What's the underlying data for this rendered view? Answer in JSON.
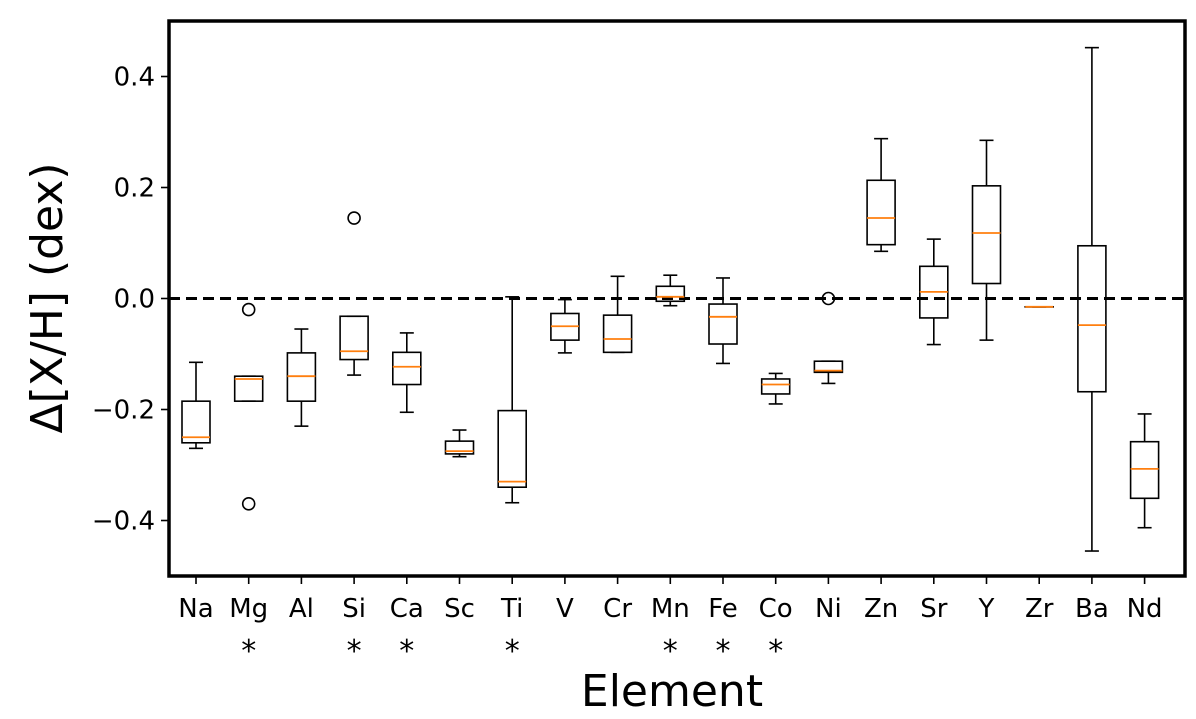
{
  "chart_data": {
    "type": "box",
    "xlabel": "Element",
    "ylabel": "Δ[X/H] (dex)",
    "ylim": [
      -0.5,
      0.5
    ],
    "yticks": [
      -0.4,
      -0.2,
      0.0,
      0.2,
      0.4
    ],
    "ytick_labels": [
      "−0.4",
      "−0.2",
      "0.0",
      "0.2",
      "0.4"
    ],
    "reference_line": {
      "y": 0.0,
      "style": "dashed"
    },
    "marker_symbol": "*",
    "colors": {
      "box": "#000000",
      "median": "#ff7f0e",
      "outlier": "#000000",
      "refline": "#000000"
    },
    "boxes": [
      {
        "label": "Na",
        "whislo": -0.27,
        "q1": -0.26,
        "med": -0.25,
        "q3": -0.185,
        "whishi": -0.115,
        "fliers": [],
        "starred": false
      },
      {
        "label": "Mg",
        "whislo": -0.185,
        "q1": -0.185,
        "med": -0.145,
        "q3": -0.14,
        "whishi": -0.14,
        "fliers": [
          -0.02,
          -0.37
        ],
        "starred": true
      },
      {
        "label": "Al",
        "whislo": -0.23,
        "q1": -0.185,
        "med": -0.14,
        "q3": -0.098,
        "whishi": -0.055,
        "fliers": [],
        "starred": false
      },
      {
        "label": "Si",
        "whislo": -0.138,
        "q1": -0.11,
        "med": -0.095,
        "q3": -0.032,
        "whishi": -0.032,
        "fliers": [
          0.145
        ],
        "starred": true
      },
      {
        "label": "Ca",
        "whislo": -0.205,
        "q1": -0.155,
        "med": -0.123,
        "q3": -0.097,
        "whishi": -0.062,
        "fliers": [],
        "starred": true
      },
      {
        "label": "Sc",
        "whislo": -0.285,
        "q1": -0.28,
        "med": -0.275,
        "q3": -0.257,
        "whishi": -0.237,
        "fliers": [],
        "starred": false
      },
      {
        "label": "Ti",
        "whislo": -0.368,
        "q1": -0.34,
        "med": -0.33,
        "q3": -0.202,
        "whishi": 0.003,
        "fliers": [],
        "starred": true
      },
      {
        "label": "V",
        "whislo": -0.098,
        "q1": -0.075,
        "med": -0.05,
        "q3": -0.027,
        "whishi": -0.002,
        "fliers": [],
        "starred": false
      },
      {
        "label": "Cr",
        "whislo": -0.097,
        "q1": -0.097,
        "med": -0.073,
        "q3": -0.03,
        "whishi": 0.04,
        "fliers": [],
        "starred": false
      },
      {
        "label": "Mn",
        "whislo": -0.013,
        "q1": -0.005,
        "med": 0.003,
        "q3": 0.022,
        "whishi": 0.042,
        "fliers": [],
        "starred": true
      },
      {
        "label": "Fe",
        "whislo": -0.117,
        "q1": -0.082,
        "med": -0.033,
        "q3": -0.01,
        "whishi": 0.037,
        "fliers": [],
        "starred": true
      },
      {
        "label": "Co",
        "whislo": -0.19,
        "q1": -0.172,
        "med": -0.155,
        "q3": -0.145,
        "whishi": -0.135,
        "fliers": [],
        "starred": true
      },
      {
        "label": "Ni",
        "whislo": -0.153,
        "q1": -0.133,
        "med": -0.13,
        "q3": -0.113,
        "whishi": -0.113,
        "fliers": [
          0.0
        ],
        "starred": false
      },
      {
        "label": "Zn",
        "whislo": 0.085,
        "q1": 0.097,
        "med": 0.145,
        "q3": 0.213,
        "whishi": 0.288,
        "fliers": [],
        "starred": false
      },
      {
        "label": "Sr",
        "whislo": -0.083,
        "q1": -0.035,
        "med": 0.012,
        "q3": 0.058,
        "whishi": 0.107,
        "fliers": [],
        "starred": false
      },
      {
        "label": "Y",
        "whislo": -0.075,
        "q1": 0.027,
        "med": 0.118,
        "q3": 0.203,
        "whishi": 0.285,
        "fliers": [],
        "starred": false
      },
      {
        "label": "Zr",
        "whislo": -0.015,
        "q1": -0.015,
        "med": -0.015,
        "q3": -0.015,
        "whishi": -0.015,
        "fliers": [],
        "starred": false
      },
      {
        "label": "Ba",
        "whislo": -0.455,
        "q1": -0.168,
        "med": -0.048,
        "q3": 0.095,
        "whishi": 0.452,
        "fliers": [],
        "starred": false
      },
      {
        "label": "Nd",
        "whislo": -0.413,
        "q1": -0.36,
        "med": -0.307,
        "q3": -0.258,
        "whishi": -0.208,
        "fliers": [],
        "starred": false
      }
    ]
  }
}
